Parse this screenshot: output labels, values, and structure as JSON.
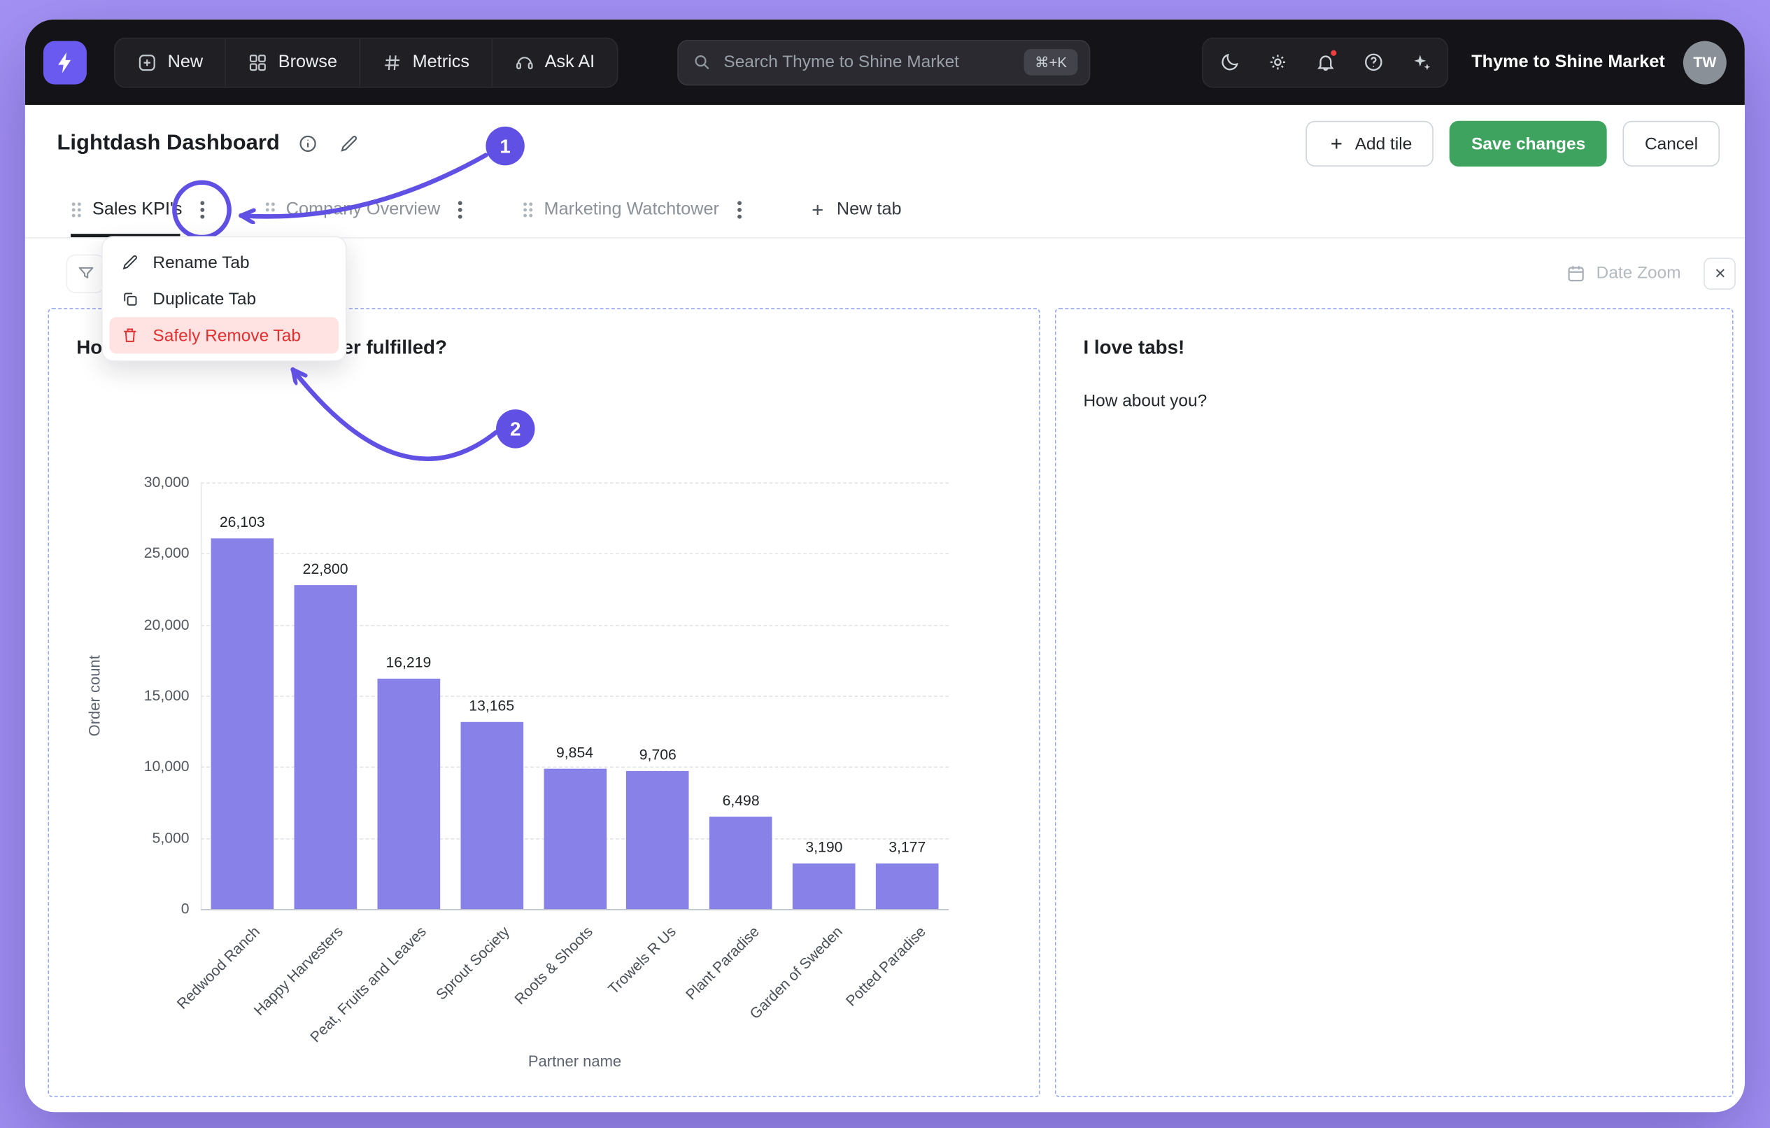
{
  "navbar": {
    "items": [
      {
        "label": "New"
      },
      {
        "label": "Browse"
      },
      {
        "label": "Metrics"
      },
      {
        "label": "Ask AI"
      }
    ],
    "search": {
      "placeholder": "Search Thyme to Shine Market",
      "shortcut": "⌘+K"
    },
    "workspace": "Thyme to Shine Market",
    "avatar_initials": "TW"
  },
  "header": {
    "title": "Lightdash Dashboard",
    "add_tile_label": "Add tile",
    "save_label": "Save changes",
    "cancel_label": "Cancel"
  },
  "tabs": {
    "items": [
      {
        "label": "Sales KPI's",
        "active": true
      },
      {
        "label": "Company Overview",
        "active": false
      },
      {
        "label": "Marketing Watchtower",
        "active": false
      }
    ],
    "new_tab_label": "New tab"
  },
  "tab_menu": {
    "items": [
      {
        "label": "Rename Tab",
        "danger": false
      },
      {
        "label": "Duplicate Tab",
        "danger": false
      },
      {
        "label": "Safely Remove Tab",
        "danger": true
      }
    ]
  },
  "filter_bar": {
    "date_zoom_label": "Date Zoom"
  },
  "tiles": {
    "chart_tile": {
      "title": "How many orders each partner fulfilled?"
    },
    "text_tile": {
      "title": "I love tabs!",
      "body": "How about you?"
    }
  },
  "annotations": {
    "badge1": "1",
    "badge2": "2"
  },
  "chart_data": {
    "type": "bar",
    "title": "How many orders each partner fulfilled?",
    "categories": [
      "Redwood Ranch",
      "Happy Harvesters",
      "Peat, Fruits and Leaves",
      "Sprout Society",
      "Roots & Shoots",
      "Trowels R Us",
      "Plant Paradise",
      "Garden of Sweden",
      "Potted Paradise"
    ],
    "values": [
      26103,
      22800,
      16219,
      13165,
      9854,
      9706,
      6498,
      3190,
      3177
    ],
    "xlabel": "Partner name",
    "ylabel": "Order count",
    "ylim": [
      0,
      30000
    ],
    "ytick_step": 5000,
    "grid": true,
    "legend": false
  },
  "colors": {
    "accent": "#6050e4",
    "green": "#3ea35f",
    "bar": "#8781e8",
    "danger": "#e03131",
    "danger_bg": "#ffe3e3",
    "tile_border": "#93a7f3",
    "logo": "#6a5af0",
    "page_bg": "#a493f4"
  }
}
